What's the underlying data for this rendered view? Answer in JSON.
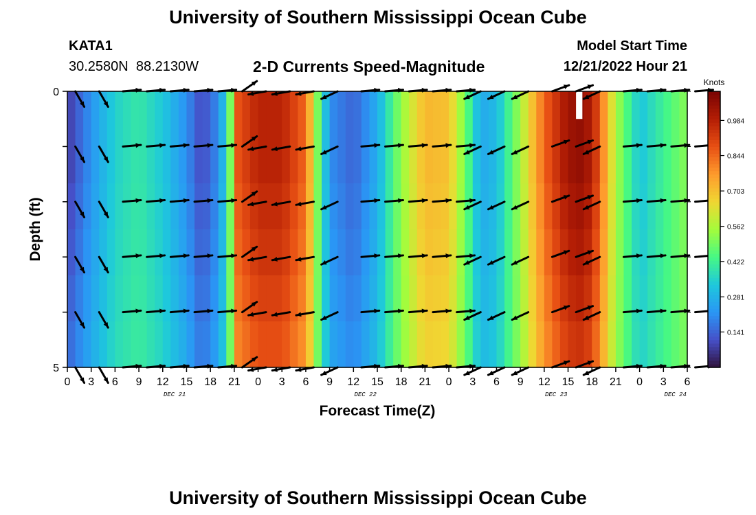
{
  "header": {
    "title": "University of Southern Mississippi Ocean Cube",
    "station": "KATA1",
    "coords": "30.2580N  88.2130W",
    "chart_heading": "2-D Currents Speed-Magnitude",
    "start_label": "Model Start Time",
    "start_value": "12/21/2022 Hour 21"
  },
  "footer": {
    "title": "University of Southern Mississippi Ocean Cube"
  },
  "colors": {
    "low": "#30123b",
    "mid": "#46f884",
    "high": "#7a0403",
    "arrow": "#000000"
  },
  "chart_data": {
    "type": "heatmap",
    "title": "2-D Currents Speed-Magnitude",
    "xlabel": "Forecast Time(Z)",
    "ylabel": "Depth (ft)",
    "units": "Knots",
    "ylim": [
      0,
      5
    ],
    "y_ticks": [
      "0",
      "5"
    ],
    "x_ticks": [
      "0",
      "3",
      "6",
      "9",
      "12",
      "15",
      "18",
      "21",
      "0",
      "3",
      "6",
      "9",
      "12",
      "15",
      "18",
      "21",
      "0",
      "3",
      "6",
      "9",
      "12",
      "15",
      "18",
      "21",
      "0",
      "3",
      "6"
    ],
    "date_labels": [
      {
        "label": "DEC 21",
        "after_tick": 4
      },
      {
        "label": "DEC 22",
        "after_tick": 12
      },
      {
        "label": "DEC 23",
        "after_tick": 20
      },
      {
        "label": "DEC 24",
        "after_tick": 25
      }
    ],
    "colorbar": {
      "min": 0.0,
      "max": 1.1,
      "ticks": [
        "0.141",
        "0.281",
        "0.422",
        "0.562",
        "0.703",
        "0.844",
        "0.984"
      ]
    },
    "speed_profile_hours": [
      0,
      3,
      6,
      9,
      12,
      15,
      16.5,
      18,
      19.5,
      20.5,
      21,
      24,
      27,
      30,
      31.5,
      33,
      36,
      39,
      42,
      45,
      48,
      50.5,
      52,
      54,
      57,
      60,
      63,
      64.5,
      66,
      69,
      72,
      75,
      78
    ],
    "speed_profile_knots": [
      0.07,
      0.22,
      0.35,
      0.4,
      0.33,
      0.21,
      0.12,
      0.13,
      0.28,
      0.5,
      0.86,
      0.98,
      0.98,
      0.84,
      0.5,
      0.21,
      0.14,
      0.27,
      0.53,
      0.72,
      0.7,
      0.44,
      0.26,
      0.3,
      0.55,
      0.85,
      1.03,
      1.05,
      1.0,
      0.56,
      0.32,
      0.42,
      0.52
    ],
    "depth_factors": [
      1.0,
      1.0,
      0.96,
      0.92,
      0.87,
      0.82
    ],
    "missing_cells": [
      {
        "hour": 64.0,
        "depth": 0,
        "note": "gap"
      }
    ],
    "vectors": {
      "hours": [
        0,
        3,
        6,
        9,
        12,
        15,
        18,
        21,
        24,
        27,
        30,
        33,
        36,
        39,
        42,
        45,
        48,
        51,
        54,
        57,
        60,
        63,
        66,
        69,
        72,
        75,
        78
      ],
      "depths": [
        0,
        1,
        2,
        3,
        4,
        5
      ],
      "directions_deg": [
        -60,
        -60,
        5,
        5,
        5,
        5,
        5,
        35,
        190,
        190,
        190,
        205,
        5,
        5,
        5,
        5,
        5,
        205,
        205,
        205,
        20,
        20,
        205,
        5,
        5,
        5,
        5
      ]
    }
  }
}
